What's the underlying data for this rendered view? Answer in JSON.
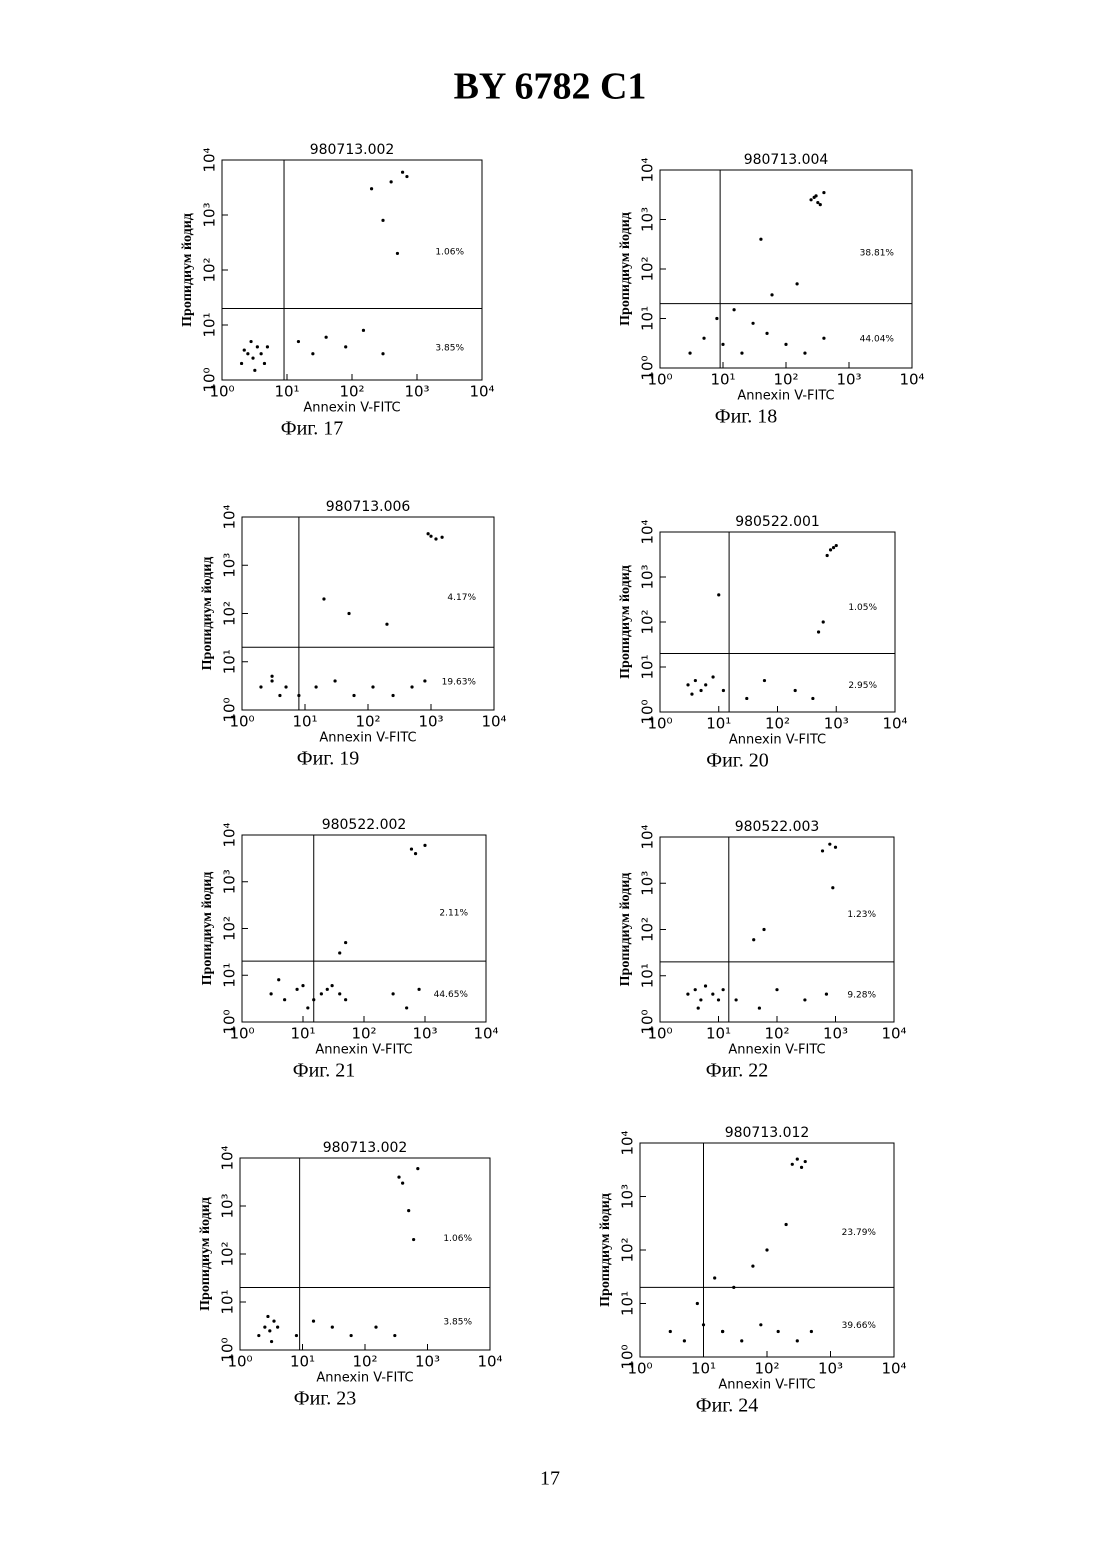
{
  "header": {
    "title": "BY 6782 C1"
  },
  "page_number": "17",
  "chart_data": [
    {
      "type": "scatter",
      "title": "980713.002",
      "caption": "Фиг. 17",
      "x_label": "Annexin V-FITC",
      "y_label": "Пропидиум йодид",
      "log_scale": true,
      "xlim": [
        1,
        10000
      ],
      "ylim": [
        1,
        10000
      ],
      "xticks": [
        {
          "value": 1,
          "label": "10⁰"
        },
        {
          "value": 10,
          "label": "10¹"
        },
        {
          "value": 100,
          "label": "10²"
        },
        {
          "value": 1000,
          "label": "10³"
        },
        {
          "value": 10000,
          "label": "10⁴"
        }
      ],
      "yticks": [
        {
          "value": 1,
          "label": "10⁰"
        },
        {
          "value": 10,
          "label": "10¹"
        },
        {
          "value": 100,
          "label": "10²"
        },
        {
          "value": 1000,
          "label": "10³"
        },
        {
          "value": 10000,
          "label": "10⁴"
        }
      ],
      "gate_x": 9,
      "gate_y": 20,
      "upper_right_label": "1.06%",
      "lower_right_label": "3.85%",
      "x": [
        2,
        2.5,
        3,
        3.5,
        4,
        2.8,
        3.2,
        2.2,
        4.5,
        5,
        15,
        25,
        40,
        80,
        150,
        300,
        200,
        400,
        300,
        500,
        700,
        600
      ],
      "y": [
        2,
        3,
        2.5,
        4,
        3,
        5,
        1.5,
        3.5,
        2,
        4,
        5,
        3,
        6,
        4,
        8,
        3,
        3000,
        4000,
        800,
        200,
        5000,
        6000
      ]
    },
    {
      "type": "scatter",
      "title": "980713.004",
      "caption": "Фиг. 18",
      "x_label": "Annexin V-FITC",
      "y_label": "Пропидиум йодид",
      "log_scale": true,
      "xlim": [
        1,
        10000
      ],
      "ylim": [
        1,
        10000
      ],
      "xticks": [
        {
          "value": 1,
          "label": "10⁰"
        },
        {
          "value": 10,
          "label": "10¹"
        },
        {
          "value": 100,
          "label": "10²"
        },
        {
          "value": 1000,
          "label": "10³"
        },
        {
          "value": 10000,
          "label": "10⁴"
        }
      ],
      "yticks": [
        {
          "value": 1,
          "label": "10⁰"
        },
        {
          "value": 10,
          "label": "10¹"
        },
        {
          "value": 100,
          "label": "10²"
        },
        {
          "value": 1000,
          "label": "10³"
        },
        {
          "value": 10000,
          "label": "10⁴"
        }
      ],
      "gate_x": 9,
      "gate_y": 20,
      "upper_right_label": "38.81%",
      "lower_right_label": "44.04%",
      "x": [
        3,
        5,
        10,
        20,
        50,
        100,
        200,
        400,
        8,
        15,
        30,
        60,
        150,
        250,
        300,
        350,
        400,
        280,
        320,
        40
      ],
      "y": [
        2,
        4,
        3,
        2,
        5,
        3,
        2,
        4,
        10,
        15,
        8,
        30,
        50,
        2500,
        3000,
        2000,
        3500,
        2800,
        2200,
        400
      ]
    },
    {
      "type": "scatter",
      "title": "980713.006",
      "caption": "Фиг. 19",
      "x_label": "Annexin V-FITC",
      "y_label": "Пропидиум йодид",
      "log_scale": true,
      "xlim": [
        1,
        10000
      ],
      "ylim": [
        1,
        10000
      ],
      "xticks": [
        {
          "value": 1,
          "label": "10⁰"
        },
        {
          "value": 10,
          "label": "10¹"
        },
        {
          "value": 100,
          "label": "10²"
        },
        {
          "value": 1000,
          "label": "10³"
        },
        {
          "value": 10000,
          "label": "10⁴"
        }
      ],
      "yticks": [
        {
          "value": 1,
          "label": "10⁰"
        },
        {
          "value": 10,
          "label": "10¹"
        },
        {
          "value": 100,
          "label": "10²"
        },
        {
          "value": 1000,
          "label": "10³"
        },
        {
          "value": 10000,
          "label": "10⁴"
        }
      ],
      "gate_x": 8,
      "gate_y": 20,
      "upper_right_label": "4.17%",
      "lower_right_label": "19.63%",
      "x": [
        2,
        3,
        4,
        5,
        3,
        8,
        15,
        30,
        60,
        120,
        250,
        500,
        800,
        1000,
        1200,
        900,
        1500,
        20,
        50,
        200
      ],
      "y": [
        3,
        4,
        2,
        3,
        5,
        2,
        3,
        4,
        2,
        3,
        2,
        3,
        4,
        4000,
        3500,
        4500,
        3800,
        200,
        100,
        60
      ]
    },
    {
      "type": "scatter",
      "title": "980522.001",
      "caption": "Фиг. 20",
      "x_label": "Annexin V-FITC",
      "y_label": "Пропидиум йодид",
      "log_scale": true,
      "xlim": [
        1,
        10000
      ],
      "ylim": [
        1,
        10000
      ],
      "xticks": [
        {
          "value": 1,
          "label": "10⁰"
        },
        {
          "value": 10,
          "label": "10¹"
        },
        {
          "value": 100,
          "label": "10²"
        },
        {
          "value": 1000,
          "label": "10³"
        },
        {
          "value": 10000,
          "label": "10⁴"
        }
      ],
      "yticks": [
        {
          "value": 1,
          "label": "10⁰"
        },
        {
          "value": 10,
          "label": "10¹"
        },
        {
          "value": 100,
          "label": "10²"
        },
        {
          "value": 1000,
          "label": "10³"
        },
        {
          "value": 10000,
          "label": "10⁴"
        }
      ],
      "gate_x": 15,
      "gate_y": 20,
      "upper_right_label": "1.05%",
      "lower_right_label": "2.95%",
      "x": [
        3,
        4,
        5,
        6,
        3.5,
        8,
        12,
        30,
        60,
        200,
        400,
        600,
        800,
        1000,
        700,
        500,
        900,
        10
      ],
      "y": [
        4,
        5,
        3,
        4,
        2.5,
        6,
        3,
        2,
        5,
        3,
        2,
        100,
        4000,
        5000,
        3000,
        60,
        4500,
        400
      ]
    },
    {
      "type": "scatter",
      "title": "980522.002",
      "caption": "Фиг. 21",
      "x_label": "Annexin V-FITC",
      "y_label": "Пропидиум йодид",
      "log_scale": true,
      "xlim": [
        1,
        10000
      ],
      "ylim": [
        1,
        10000
      ],
      "xticks": [
        {
          "value": 1,
          "label": "10⁰"
        },
        {
          "value": 10,
          "label": "10¹"
        },
        {
          "value": 100,
          "label": "10²"
        },
        {
          "value": 1000,
          "label": "10³"
        },
        {
          "value": 10000,
          "label": "10⁴"
        }
      ],
      "yticks": [
        {
          "value": 1,
          "label": "10⁰"
        },
        {
          "value": 10,
          "label": "10¹"
        },
        {
          "value": 100,
          "label": "10²"
        },
        {
          "value": 1000,
          "label": "10³"
        },
        {
          "value": 10000,
          "label": "10⁴"
        }
      ],
      "gate_x": 15,
      "gate_y": 20,
      "upper_right_label": "2.11%",
      "lower_right_label": "44.65%",
      "x": [
        3,
        5,
        8,
        12,
        20,
        30,
        50,
        4,
        10,
        15,
        25,
        40,
        300,
        500,
        800,
        600,
        700,
        1000,
        50,
        40
      ],
      "y": [
        4,
        3,
        5,
        2,
        4,
        6,
        3,
        8,
        6,
        3,
        5,
        4,
        4,
        2,
        5,
        5000,
        4000,
        6000,
        50,
        30
      ]
    },
    {
      "type": "scatter",
      "title": "980522.003",
      "caption": "Фиг. 22",
      "x_label": "Annexin V-FITC",
      "y_label": "Пропидиум йодид",
      "log_scale": true,
      "xlim": [
        1,
        10000
      ],
      "ylim": [
        1,
        10000
      ],
      "xticks": [
        {
          "value": 1,
          "label": "10⁰"
        },
        {
          "value": 10,
          "label": "10¹"
        },
        {
          "value": 100,
          "label": "10²"
        },
        {
          "value": 1000,
          "label": "10³"
        },
        {
          "value": 10000,
          "label": "10⁴"
        }
      ],
      "yticks": [
        {
          "value": 1,
          "label": "10⁰"
        },
        {
          "value": 10,
          "label": "10¹"
        },
        {
          "value": 100,
          "label": "10²"
        },
        {
          "value": 1000,
          "label": "10³"
        },
        {
          "value": 10000,
          "label": "10⁴"
        }
      ],
      "gate_x": 15,
      "gate_y": 20,
      "upper_right_label": "1.23%",
      "lower_right_label": "9.28%",
      "x": [
        3,
        4,
        5,
        6,
        8,
        10,
        12,
        4.5,
        20,
        50,
        100,
        300,
        700,
        1000,
        600,
        800,
        900,
        40,
        60
      ],
      "y": [
        4,
        5,
        3,
        6,
        4,
        3,
        5,
        2,
        3,
        2,
        5,
        3,
        4,
        6000,
        5000,
        7000,
        800,
        60,
        100
      ]
    },
    {
      "type": "scatter",
      "title": "980713.002",
      "caption": "Фиг. 23",
      "x_label": "Annexin V-FITC",
      "y_label": "Пропидиум йодид",
      "log_scale": true,
      "xlim": [
        1,
        10000
      ],
      "ylim": [
        1,
        10000
      ],
      "xticks": [
        {
          "value": 1,
          "label": "10⁰"
        },
        {
          "value": 10,
          "label": "10¹"
        },
        {
          "value": 100,
          "label": "10²"
        },
        {
          "value": 1000,
          "label": "10³"
        },
        {
          "value": 10000,
          "label": "10⁴"
        }
      ],
      "yticks": [
        {
          "value": 1,
          "label": "10⁰"
        },
        {
          "value": 10,
          "label": "10¹"
        },
        {
          "value": 100,
          "label": "10²"
        },
        {
          "value": 1000,
          "label": "10³"
        },
        {
          "value": 10000,
          "label": "10⁴"
        }
      ],
      "gate_x": 9,
      "gate_y": 20,
      "upper_right_label": "1.06%",
      "lower_right_label": "3.85%",
      "x": [
        2,
        2.5,
        3,
        3.5,
        4,
        2.8,
        3.2,
        8,
        15,
        30,
        60,
        150,
        300,
        400,
        500,
        600,
        350,
        700
      ],
      "y": [
        2,
        3,
        2.5,
        4,
        3,
        5,
        1.5,
        2,
        4,
        3,
        2,
        3,
        2,
        3000,
        800,
        200,
        4000,
        6000
      ]
    },
    {
      "type": "scatter",
      "title": "980713.012",
      "caption": "Фиг. 24",
      "x_label": "Annexin V-FITC",
      "y_label": "Пропидиум йодид",
      "log_scale": true,
      "xlim": [
        1,
        10000
      ],
      "ylim": [
        1,
        10000
      ],
      "xticks": [
        {
          "value": 1,
          "label": "10⁰"
        },
        {
          "value": 10,
          "label": "10¹"
        },
        {
          "value": 100,
          "label": "10²"
        },
        {
          "value": 1000,
          "label": "10³"
        },
        {
          "value": 10000,
          "label": "10⁴"
        }
      ],
      "yticks": [
        {
          "value": 1,
          "label": "10⁰"
        },
        {
          "value": 10,
          "label": "10¹"
        },
        {
          "value": 100,
          "label": "10²"
        },
        {
          "value": 1000,
          "label": "10³"
        },
        {
          "value": 10000,
          "label": "10⁴"
        }
      ],
      "gate_x": 10,
      "gate_y": 20,
      "upper_right_label": "23.79%",
      "lower_right_label": "39.66%",
      "x": [
        3,
        5,
        10,
        20,
        40,
        80,
        150,
        300,
        8,
        15,
        30,
        60,
        100,
        250,
        300,
        400,
        350,
        200,
        500,
        20
      ],
      "y": [
        3,
        2,
        4,
        3,
        2,
        4,
        3,
        2,
        10,
        30,
        20,
        50,
        100,
        4000,
        5000,
        4500,
        3500,
        300,
        3,
        3
      ]
    }
  ]
}
